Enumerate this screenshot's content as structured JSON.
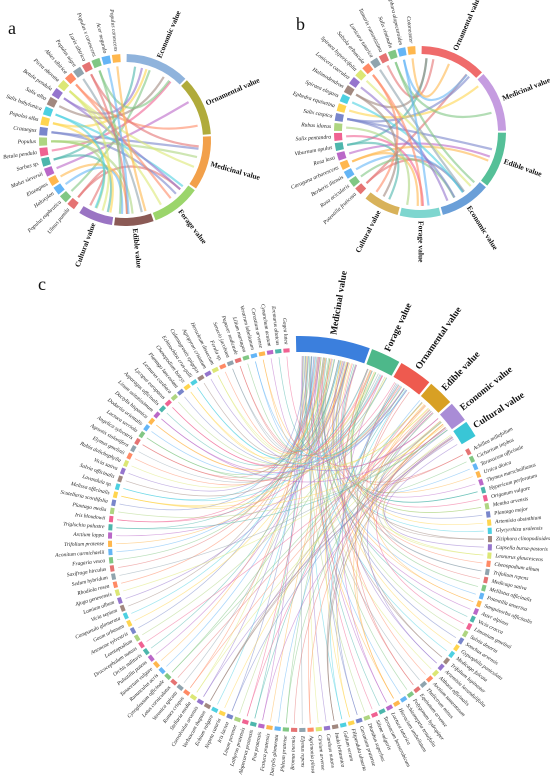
{
  "panels": [
    {
      "letter": "a",
      "categories": [
        {
          "name": "Economic value",
          "color": "#8fb3dc"
        },
        {
          "name": "Ornamental value",
          "color": "#b0ab3b"
        },
        {
          "name": "Medicinal value",
          "color": "#f2a04a"
        },
        {
          "name": "Forage value",
          "color": "#9bd56b"
        },
        {
          "name": "Edible value",
          "color": "#8b5a55"
        },
        {
          "name": "Cultural value",
          "color": "#9a74c3"
        }
      ],
      "species": [
        "Ulmus pumila",
        "Populus euphratica",
        "Haloxylon",
        "Elaeagnus",
        "Malus sieversii",
        "Sorbus sp.",
        "Betula pendula",
        "Populus",
        "Crataegus",
        "Populus alba",
        "Salix babylonica",
        "Salix alba",
        "Betula pendula",
        "Picea obovata",
        "Abies sibirica",
        "Populus nigra",
        "Larix sibirica",
        "Populus x canescens",
        "Acer negundo",
        "Populus canescens"
      ]
    },
    {
      "letter": "b",
      "categories": [
        {
          "name": "Ornamental value",
          "color": "#ef6b6b"
        },
        {
          "name": "Medicinal value",
          "color": "#c59ce0"
        },
        {
          "name": "Edible value",
          "color": "#55c098"
        },
        {
          "name": "Economic value",
          "color": "#6a9fd8"
        },
        {
          "name": "Forage value",
          "color": "#7ed6cf"
        },
        {
          "name": "Cultural value",
          "color": "#d8b25a"
        }
      ],
      "species": [
        "Potentilla fruticosa",
        "Rosa acicularis",
        "Berberis iliensis",
        "Caragana arborescens",
        "Rosa laxa",
        "Viburnum opulus",
        "Salix pentandra",
        "Rubus idaeus",
        "Salix caspica",
        "Ephedra equisetina",
        "Spiraea elegans",
        "Halimodendron",
        "Lonicera caerulea",
        "Spiraea hypericifolia",
        "Salsola arbuscula",
        "Lonicera tatarica",
        "Tamarix ramosissima",
        "Salix viminalis",
        "Sophora alopecuroides",
        "Cotoneaster"
      ]
    },
    {
      "letter": "c",
      "categories": [
        {
          "name": "Medicinal value",
          "color": "#3b7fdd"
        },
        {
          "name": "Forage value",
          "color": "#4db88a"
        },
        {
          "name": "Ornamental value",
          "color": "#ee5a4f"
        },
        {
          "name": "Edible value",
          "color": "#d8a024"
        },
        {
          "name": "Economic value",
          "color": "#a98cd6"
        },
        {
          "name": "Cultural value",
          "color": "#39c6d6"
        }
      ],
      "species": [
        "Achillea millefolium",
        "Cichorium intybus",
        "Taraxacum officinale",
        "Urtica dioica",
        "Thymus marschallianus",
        "Hypericum perforatum",
        "Origanum vulgare",
        "Mentha arvensis",
        "Plantago major",
        "Artemisia absinthium",
        "Glycyrrhiza uralensis",
        "Ziziphora clinopodioides",
        "Capsella bursa-pastoris",
        "Leonurus glaucescens",
        "Chenopodium album",
        "Trifolium repens",
        "Medicago sativa",
        "Melilotus officinalis",
        "Potentilla anserina",
        "Sanguisorba officinalis",
        "Aster alpinus",
        "Vicia cracca",
        "Limonium gmelinii",
        "Salvia deserta",
        "Sonchus arvensis",
        "Gypsophila paniculata",
        "Medicago falcata",
        "Trifolium lupinaster",
        "Artemisia lavandulifolia",
        "Althaea officinalis",
        "Arctium tomentosum",
        "Thalictrum minus",
        "Equisetum arvense",
        "Polygonum hydropiper",
        "Schizonepeta tenuifolia",
        "Hieracium umbellatum",
        "Lactuca tatarica",
        "Taraxacum bessarabicum",
        "Silene vulgaris",
        "Dianthus superbus",
        "Geranium pratense",
        "Filipendula ulmaria",
        "Galium verum",
        "Inula britannica",
        "Carduus nutans",
        "Cirsium arvense",
        "Agrimonia pilosa",
        "Elymus repens",
        "Bromus inermis",
        "Phleum pratense",
        "Dactylis glomerata",
        "Festuca pratensis",
        "Poa pratensis",
        "Alopecurus pratensis",
        "Lathyrus pratensis",
        "Linum perenne",
        "Iris lactea",
        "Nepeta cataria",
        "Echium vulgare",
        "Verbascum thapsus",
        "Convolvulus arvensis",
        "Stellaria media",
        "Rumex crispus",
        "Veronica spicata",
        "Lotus corniculatus",
        "Cynoglossum officinale",
        "Ranunculus acris",
        "Tanacetum vulgare",
        "Pulsatilla patens",
        "Orchis militaris",
        "Dracocephalum nutans",
        "Leontopodium",
        "Anemone sylvestris",
        "Geum urbanum",
        "Campanula glomerata",
        "Vicia sepium",
        "Lamium album",
        "Ajuga genevensis",
        "Rhodiola rosea",
        "Sedum hybridum",
        "Saxifraga hirculus",
        "Fragaria vesca",
        "Aconitum carmichaelii",
        "Trifolium pratense",
        "Arctium lappa",
        "Triglochin palustre",
        "Iris bloudowii",
        "Plantago media",
        "Scutellaria scordifolia",
        "Melissa officinalis",
        "Lavandula sp.",
        "Salvia officinalis",
        "Vicia sativa",
        "Rubia dolichophylla",
        "Elymus gmelinii",
        "Agrostis stolonifera",
        "Angelica sylvestris",
        "Lactuca serriola",
        "Dodartia orientalis",
        "Dactylis hispanica",
        "Linum usitatissimum",
        "Asparagus officinalis",
        "Lycopus europaeus",
        "Leonurus cardiaca",
        "Plantago lanceolata",
        "Chenopodium botrys",
        "Echinochloa crus-galli",
        "Calamagrostis epigejos",
        "Agropyron cristatum",
        "Heracleum dissectum",
        "Ferula sp.",
        "Senecio jacobaea",
        "Papaver nudicaule",
        "Lilium martagon",
        "Veratrum lobelianum",
        "Cerastium arvense",
        "Cynanchum acutum",
        "Eremurus altaicus",
        "Gagea lutea"
      ]
    }
  ]
}
